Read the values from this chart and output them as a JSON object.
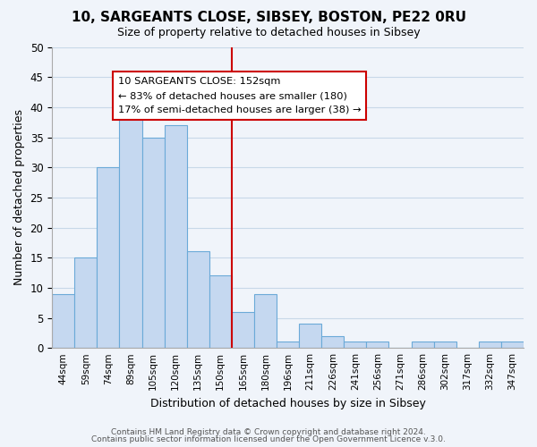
{
  "title": "10, SARGEANTS CLOSE, SIBSEY, BOSTON, PE22 0RU",
  "subtitle": "Size of property relative to detached houses in Sibsey",
  "xlabel": "Distribution of detached houses by size in Sibsey",
  "ylabel": "Number of detached properties",
  "bar_labels": [
    "44sqm",
    "59sqm",
    "74sqm",
    "89sqm",
    "105sqm",
    "120sqm",
    "135sqm",
    "150sqm",
    "165sqm",
    "180sqm",
    "196sqm",
    "211sqm",
    "226sqm",
    "241sqm",
    "256sqm",
    "271sqm",
    "286sqm",
    "302sqm",
    "317sqm",
    "332sqm",
    "347sqm"
  ],
  "bar_heights": [
    9,
    15,
    30,
    38,
    35,
    37,
    16,
    12,
    6,
    9,
    1,
    4,
    2,
    1,
    1,
    0,
    1,
    1,
    0,
    1,
    1
  ],
  "bar_color": "#c5d8f0",
  "bar_edge_color": "#6baad8",
  "vline_x_index": 7,
  "vline_color": "#cc0000",
  "ylim": [
    0,
    50
  ],
  "yticks": [
    0,
    5,
    10,
    15,
    20,
    25,
    30,
    35,
    40,
    45,
    50
  ],
  "annotation_title": "10 SARGEANTS CLOSE: 152sqm",
  "annotation_line1": "← 83% of detached houses are smaller (180)",
  "annotation_line2": "17% of semi-detached houses are larger (38) →",
  "footer_line1": "Contains HM Land Registry data © Crown copyright and database right 2024.",
  "footer_line2": "Contains public sector information licensed under the Open Government Licence v.3.0.",
  "bg_color": "#f0f4fa",
  "grid_color": "#c8d8e8"
}
